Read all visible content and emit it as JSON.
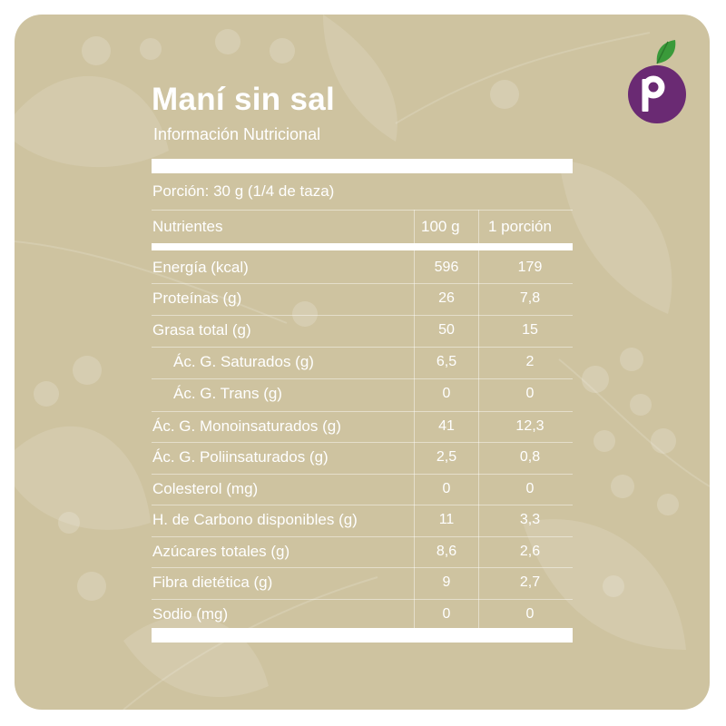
{
  "title": "Maní sin sal",
  "subtitle": "Información Nutricional",
  "portion": "Porción: 30 g (1/4 de taza)",
  "headers": {
    "name": "Nutrientes",
    "per100": "100 g",
    "perPortion": "1 porción"
  },
  "rows": [
    {
      "name": "Energía (kcal)",
      "per100": "596",
      "perPortion": "179"
    },
    {
      "name": "Proteínas (g)",
      "per100": "26",
      "perPortion": "7,8"
    },
    {
      "name": "Grasa total (g)",
      "per100": "50",
      "perPortion": "15"
    },
    {
      "name": "Ác. G. Saturados (g)",
      "per100": "6,5",
      "perPortion": "2"
    },
    {
      "name": "Ác. G. Trans (g)",
      "per100": "0",
      "perPortion": "0"
    },
    {
      "name": "Ác. G. Monoinsaturados (g)",
      "per100": "41",
      "perPortion": "12,3"
    },
    {
      "name": "Ác. G. Poliinsaturados (g)",
      "per100": "2,5",
      "perPortion": "0,8"
    },
    {
      "name": "Colesterol (mg)",
      "per100": "0",
      "perPortion": "0"
    },
    {
      "name": "H. de Carbono disponibles (g)",
      "per100": "11",
      "perPortion": "3,3"
    },
    {
      "name": "Azúcares totales (g)",
      "per100": "8,6",
      "perPortion": "2,6"
    },
    {
      "name": "Fibra dietética (g)",
      "per100": "9",
      "perPortion": "2,7"
    },
    {
      "name": "Sodio (mg)",
      "per100": "0",
      "perPortion": "0"
    }
  ],
  "logo": {
    "letter": "p",
    "icon": "brand-plum-icon"
  },
  "colors": {
    "card": "#cec3a0",
    "logoPurple": "#6a2a73",
    "leaf": "#3a9a3a",
    "text": "#ffffff"
  }
}
